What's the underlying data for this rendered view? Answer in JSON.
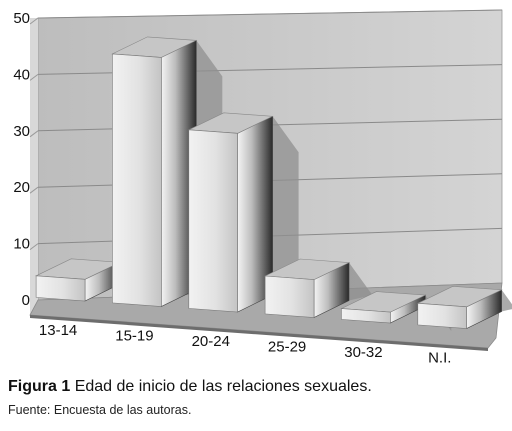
{
  "chart_data": {
    "type": "bar",
    "style": "3d",
    "categories": [
      "13-14",
      "15-19",
      "20-24",
      "25-29",
      "30-32",
      "N.I."
    ],
    "values": [
      4,
      46,
      33,
      7,
      2,
      4
    ],
    "ylim": [
      0,
      50
    ],
    "yticks": [
      "0",
      "10",
      "20",
      "30",
      "40",
      "50"
    ],
    "grid": true,
    "legend": "none",
    "colors": {
      "wall": "#c8c8c8",
      "floor": "#a9a9a9",
      "grid": "#8a8a8a",
      "bar_front": "#dedede",
      "bar_top": "#c6c6c6",
      "bar_side": "#555555",
      "shadow": "#8f8f8f"
    }
  },
  "caption": {
    "label": "Figura 1",
    "text": "Edad de inicio de las relaciones sexuales.",
    "source": "Fuente: Encuesta de las autoras."
  }
}
